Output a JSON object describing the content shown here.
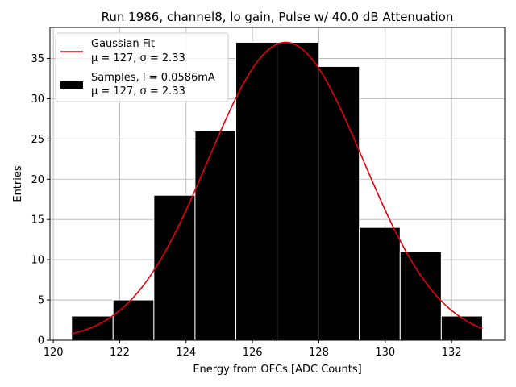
{
  "chart_data": {
    "type": "bar",
    "title": "Run 1986, channel8, lo gain, Pulse w/ 40.0 dB Attenuation",
    "xlabel": "Energy from OFCs [ADC Counts]",
    "ylabel": "Entries",
    "xlim": [
      119.9,
      133.6
    ],
    "ylim": [
      0,
      38.85
    ],
    "xticks": [
      120,
      122,
      124,
      126,
      128,
      130,
      132
    ],
    "yticks": [
      0,
      5,
      10,
      15,
      20,
      25,
      30,
      35
    ],
    "grid": true,
    "legend_position": "top-left",
    "bins": [
      {
        "left": 120.55,
        "right": 121.8,
        "count": 3
      },
      {
        "left": 121.8,
        "right": 123.03,
        "count": 5
      },
      {
        "left": 123.03,
        "right": 124.27,
        "count": 18
      },
      {
        "left": 124.27,
        "right": 125.5,
        "count": 26
      },
      {
        "left": 125.5,
        "right": 126.74,
        "count": 37
      },
      {
        "left": 126.74,
        "right": 127.98,
        "count": 37
      },
      {
        "left": 127.98,
        "right": 129.22,
        "count": 34
      },
      {
        "left": 129.22,
        "right": 130.45,
        "count": 14
      },
      {
        "left": 130.45,
        "right": 131.69,
        "count": 11
      },
      {
        "left": 131.69,
        "right": 132.93,
        "count": 3
      }
    ],
    "series": [
      {
        "name": "Gaussian Fit",
        "kind": "line",
        "color": "#e8000b",
        "label_line2": "μ = 127, σ = 2.33",
        "mu": 127.0,
        "sigma": 2.33,
        "amplitude": 37.0,
        "x_range": [
          120.55,
          132.93
        ]
      },
      {
        "name": "Samples, I = 0.0586mA",
        "kind": "histogram",
        "color": "#000000",
        "edge_color": "#ffffff",
        "label_line2": "μ = 127, σ = 2.33"
      }
    ]
  }
}
